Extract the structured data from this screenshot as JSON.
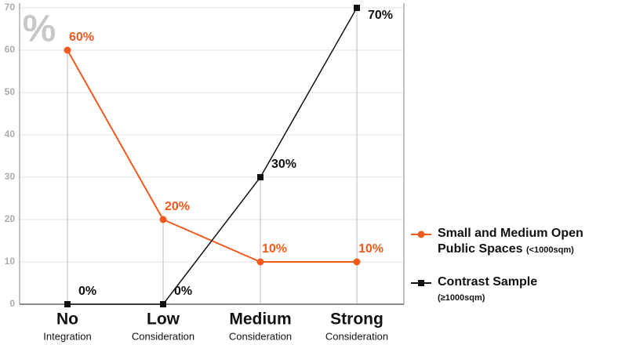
{
  "chart_data": {
    "type": "line",
    "y_label": "%",
    "categories": [
      "No",
      "Low",
      "Medium",
      "Strong"
    ],
    "category_subtitles": [
      "Integration",
      "Consideration",
      "Consideration",
      "Consideration"
    ],
    "series": [
      {
        "name": "Small and Medium Open Public Spaces",
        "note": "(<1000sqm)",
        "color": "#f05a1e",
        "marker": "circle",
        "values": [
          60,
          20,
          10,
          10
        ],
        "value_labels": [
          "60%",
          "20%",
          "10%",
          "10%"
        ]
      },
      {
        "name": "Contrast Sample",
        "note": "(≥1000sqm)",
        "color": "#111111",
        "marker": "square",
        "values": [
          0,
          0,
          30,
          70
        ],
        "value_labels": [
          "0%",
          "0%",
          "30%",
          "70%"
        ]
      }
    ],
    "ylim": [
      0,
      70
    ],
    "yticks": [
      0,
      10,
      20,
      30,
      40,
      50,
      60,
      70
    ],
    "grid": true
  }
}
